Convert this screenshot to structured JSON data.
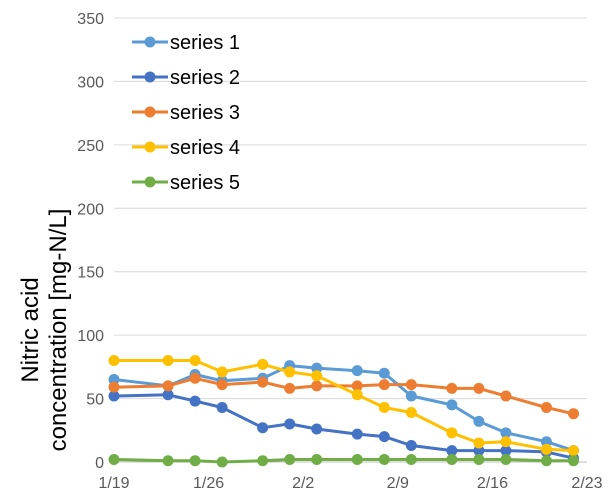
{
  "chart_data": {
    "type": "line",
    "x_unit": "date",
    "x_ticks": [
      "1/19",
      "1/26",
      "2/2",
      "2/9",
      "2/16",
      "2/23"
    ],
    "x_tick_dates": [
      "2000-01-19",
      "2000-01-26",
      "2000-02-02",
      "2000-02-09",
      "2000-02-16",
      "2000-02-23"
    ],
    "x": [
      "2000-01-19",
      "2000-01-23",
      "2000-01-25",
      "2000-01-27",
      "2000-01-30",
      "2000-02-01",
      "2000-02-03",
      "2000-02-06",
      "2000-02-08",
      "2000-02-10",
      "2000-02-13",
      "2000-02-15",
      "2000-02-17",
      "2000-02-20",
      "2000-02-22"
    ],
    "ylim": [
      0,
      350
    ],
    "y_ticks": [
      0,
      50,
      100,
      150,
      200,
      250,
      300,
      350
    ],
    "ylabel_lines": [
      "Nitric acid",
      "concentration  [mg-N/L]"
    ],
    "grid": "horizontal",
    "legend_position": "top-left",
    "series": [
      {
        "name": "series 1",
        "color": "#5B9BD5",
        "values": [
          65,
          60,
          69,
          64,
          66,
          76,
          74,
          72,
          70,
          52,
          45,
          32,
          23,
          16,
          9
        ]
      },
      {
        "name": "series 2",
        "color": "#4472C4",
        "values": [
          52,
          53,
          48,
          43,
          27,
          30,
          26,
          22,
          20,
          13,
          9,
          9,
          9,
          8,
          3
        ]
      },
      {
        "name": "series 3",
        "color": "#ED7D31",
        "values": [
          59,
          60,
          66,
          61,
          63,
          58,
          60,
          60,
          61,
          61,
          58,
          58,
          52,
          43,
          38
        ]
      },
      {
        "name": "series 4",
        "color": "#FFC000",
        "values": [
          80,
          80,
          80,
          71,
          77,
          71,
          68,
          53,
          43,
          39,
          23,
          15,
          16,
          10,
          9
        ]
      },
      {
        "name": "series 5",
        "color": "#70AD47",
        "values": [
          2,
          1,
          1,
          0,
          1,
          2,
          2,
          2,
          2,
          2,
          2,
          2,
          2,
          1,
          1
        ]
      }
    ]
  }
}
